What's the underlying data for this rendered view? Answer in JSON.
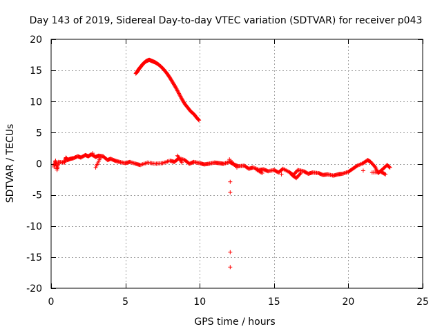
{
  "chart_data": {
    "type": "scatter",
    "title": "Day 143 of 2019, Sidereal Day-to-day VTEC variation (SDTVAR) for receiver p043",
    "xlabel": "GPS time / hours",
    "ylabel": "SDTVAR / TECUs",
    "xlim": [
      0,
      25
    ],
    "ylim": [
      -20,
      20
    ],
    "xticks": [
      0,
      5,
      10,
      15,
      20,
      25
    ],
    "yticks": [
      -20,
      -15,
      -10,
      -5,
      0,
      5,
      10,
      15,
      20
    ],
    "grid": true,
    "marker": "+",
    "color": "#ff0000",
    "series": [
      {
        "name": "SDTVAR",
        "x": [
          0.2,
          0.3,
          0.4,
          0.5,
          0.9,
          1.0,
          1.1,
          1.3,
          1.5,
          1.8,
          2.0,
          2.3,
          2.5,
          2.7,
          3.0,
          3.2,
          3.5,
          3.8,
          4.0,
          4.3,
          4.6,
          5.0,
          5.3,
          5.7,
          6.0,
          6.5,
          7.0,
          7.5,
          8.0,
          8.3,
          8.6,
          9.0,
          9.3,
          9.6,
          10.0,
          10.3,
          10.6,
          11.0,
          11.3,
          11.6,
          12.0,
          12.3,
          12.6,
          13.0,
          13.3,
          13.6,
          14.0,
          14.3,
          14.6,
          15.0,
          15.3,
          15.6,
          16.0,
          16.3,
          16.6,
          17.0,
          17.3,
          17.6,
          18.0,
          18.3,
          18.6,
          19.0,
          19.3,
          19.6,
          20.0,
          20.3,
          20.6,
          21.0,
          21.3,
          21.5,
          21.8,
          22.0,
          22.3,
          22.6,
          22.8,
          3.0,
          3.3,
          2.8,
          8.5,
          8.8,
          12.0,
          12.5,
          13.8,
          14.2,
          15.5,
          16.2,
          16.5,
          16.8,
          21.0,
          21.6,
          22.2,
          22.5,
          5.7,
          5.8,
          5.9,
          6.0,
          6.1,
          6.2,
          6.3,
          6.4,
          6.5,
          6.6,
          6.7,
          6.8,
          6.9,
          7.0,
          7.2,
          7.4,
          7.6,
          7.8,
          8.0,
          8.2,
          8.4,
          8.6,
          8.8,
          9.0,
          9.2,
          9.4,
          9.6,
          9.8,
          9.95,
          12.05,
          12.05,
          12.05,
          12.05
        ],
        "y": [
          -0.5,
          0.5,
          -1.0,
          0.3,
          0.2,
          1.0,
          0.6,
          0.8,
          0.9,
          1.2,
          1.0,
          1.4,
          1.2,
          1.5,
          1.1,
          1.3,
          1.2,
          0.6,
          0.8,
          0.5,
          0.3,
          0.1,
          0.3,
          0.0,
          -0.2,
          0.2,
          0.0,
          0.1,
          0.5,
          0.3,
          0.9,
          0.6,
          0.0,
          0.3,
          0.1,
          -0.1,
          0.0,
          0.2,
          0.1,
          0.0,
          0.3,
          -0.1,
          -0.4,
          -0.3,
          -0.8,
          -0.6,
          -1.0,
          -0.9,
          -1.2,
          -1.0,
          -1.4,
          -0.8,
          -1.3,
          -1.8,
          -1.0,
          -1.2,
          -1.6,
          -1.4,
          -1.5,
          -1.8,
          -1.7,
          -1.9,
          -1.7,
          -1.6,
          -1.3,
          -0.8,
          -0.3,
          0.1,
          0.6,
          0.3,
          -0.5,
          -1.5,
          -0.9,
          -0.2,
          -0.6,
          -0.6,
          0.9,
          1.7,
          1.3,
          0.2,
          0.7,
          -0.6,
          -0.9,
          -1.5,
          -1.7,
          -1.8,
          -2.3,
          -1.5,
          -1.1,
          -1.4,
          -1.3,
          -1.7,
          14.5,
          14.8,
          15.2,
          15.5,
          15.8,
          16.1,
          16.3,
          16.5,
          16.6,
          16.7,
          16.6,
          16.5,
          16.4,
          16.3,
          16.0,
          15.6,
          15.1,
          14.5,
          13.8,
          13.0,
          12.2,
          11.3,
          10.4,
          9.6,
          9.0,
          8.4,
          8.0,
          7.4,
          7.0,
          -2.9,
          -4.6,
          -14.2,
          -16.6
        ]
      }
    ]
  }
}
